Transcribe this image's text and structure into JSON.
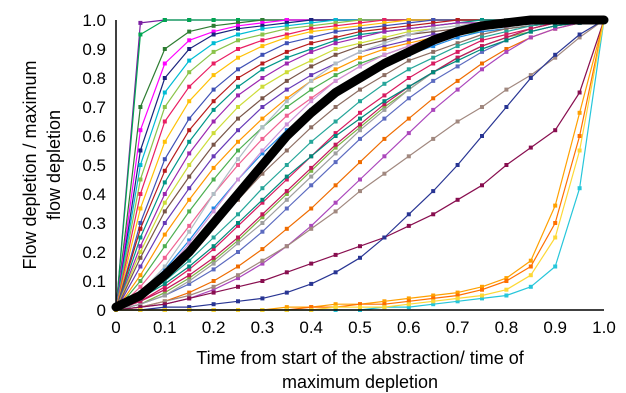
{
  "chart_data": {
    "type": "line",
    "xlabel_lines": [
      "Time from start of the abstraction/ time of",
      "maximum depletion"
    ],
    "ylabel_lines": [
      "Flow depletion / maximum",
      "flow depletion"
    ],
    "xlim": [
      0,
      1
    ],
    "ylim": [
      0,
      1
    ],
    "x_ticks": [
      "0",
      "0.1",
      "0.2",
      "0.3",
      "0.4",
      "0.5",
      "0.6",
      "0.7",
      "0.8",
      "0.9",
      "1.0"
    ],
    "y_ticks": [
      "0",
      "0.1",
      "0.2",
      "0.3",
      "0.4",
      "0.5",
      "0.6",
      "0.7",
      "0.8",
      "0.9",
      "1.0"
    ],
    "grid": false,
    "legend": "none",
    "x": [
      0,
      0.05,
      0.1,
      0.15,
      0.2,
      0.25,
      0.3,
      0.35,
      0.4,
      0.45,
      0.5,
      0.55,
      0.6,
      0.65,
      0.7,
      0.75,
      0.8,
      0.85,
      0.9,
      0.95,
      1.0
    ],
    "series": [
      {
        "color": "#000000",
        "highlight": true,
        "values": [
          0.01,
          0.05,
          0.12,
          0.2,
          0.3,
          0.4,
          0.5,
          0.6,
          0.68,
          0.75,
          0.8,
          0.85,
          0.89,
          0.93,
          0.96,
          0.98,
          0.99,
          1.0,
          1.0,
          1.0,
          1.0
        ]
      },
      {
        "color": "#7a1fa2",
        "values": [
          0.0,
          0.99,
          1.0,
          1.0,
          1.0,
          1.0,
          1.0,
          1.0,
          1.0,
          1.0,
          1.0,
          1.0,
          1.0,
          1.0,
          1.0,
          1.0,
          1.0,
          1.0,
          1.0,
          1.0,
          1.0
        ]
      },
      {
        "color": "#00a651",
        "values": [
          0.0,
          0.95,
          1.0,
          1.0,
          1.0,
          1.0,
          1.0,
          1.0,
          1.0,
          1.0,
          1.0,
          1.0,
          1.0,
          1.0,
          1.0,
          1.0,
          1.0,
          1.0,
          1.0,
          1.0,
          1.0
        ]
      },
      {
        "color": "#2e7d32",
        "values": [
          0.0,
          0.7,
          0.9,
          0.96,
          0.98,
          0.99,
          1.0,
          1.0,
          1.0,
          1.0,
          1.0,
          1.0,
          1.0,
          1.0,
          1.0,
          1.0,
          1.0,
          1.0,
          1.0,
          1.0,
          1.0
        ]
      },
      {
        "color": "#ff00ff",
        "values": [
          0.0,
          0.62,
          0.85,
          0.93,
          0.96,
          0.98,
          0.99,
          1.0,
          1.0,
          1.0,
          1.0,
          1.0,
          1.0,
          1.0,
          1.0,
          1.0,
          1.0,
          1.0,
          1.0,
          1.0,
          1.0
        ]
      },
      {
        "color": "#1a237e",
        "values": [
          0.0,
          0.55,
          0.8,
          0.9,
          0.95,
          0.97,
          0.98,
          0.99,
          1.0,
          1.0,
          1.0,
          1.0,
          1.0,
          1.0,
          1.0,
          1.0,
          1.0,
          1.0,
          1.0,
          1.0,
          1.0
        ]
      },
      {
        "color": "#00bcd4",
        "values": [
          0.0,
          0.5,
          0.75,
          0.86,
          0.92,
          0.95,
          0.97,
          0.98,
          0.99,
          1.0,
          1.0,
          1.0,
          1.0,
          1.0,
          1.0,
          1.0,
          1.0,
          1.0,
          1.0,
          1.0,
          1.0
        ]
      },
      {
        "color": "#8bc34a",
        "values": [
          0.0,
          0.45,
          0.7,
          0.82,
          0.89,
          0.93,
          0.95,
          0.97,
          0.98,
          0.99,
          1.0,
          1.0,
          1.0,
          1.0,
          1.0,
          1.0,
          1.0,
          1.0,
          1.0,
          1.0,
          1.0
        ]
      },
      {
        "color": "#e91e63",
        "values": [
          0.0,
          0.4,
          0.65,
          0.77,
          0.85,
          0.9,
          0.93,
          0.95,
          0.97,
          0.98,
          0.99,
          1.0,
          1.0,
          1.0,
          1.0,
          1.0,
          1.0,
          1.0,
          1.0,
          1.0,
          1.0
        ]
      },
      {
        "color": "#ffc107",
        "values": [
          0.0,
          0.35,
          0.58,
          0.72,
          0.81,
          0.87,
          0.91,
          0.94,
          0.96,
          0.97,
          0.98,
          0.99,
          1.0,
          1.0,
          1.0,
          1.0,
          1.0,
          1.0,
          1.0,
          1.0,
          1.0
        ]
      },
      {
        "color": "#3f51b5",
        "values": [
          0.0,
          0.3,
          0.52,
          0.66,
          0.76,
          0.83,
          0.88,
          0.92,
          0.94,
          0.96,
          0.97,
          0.98,
          0.99,
          1.0,
          1.0,
          1.0,
          1.0,
          1.0,
          1.0,
          1.0,
          1.0
        ]
      },
      {
        "color": "#b71c1c",
        "values": [
          0.0,
          0.28,
          0.48,
          0.62,
          0.72,
          0.8,
          0.85,
          0.89,
          0.92,
          0.94,
          0.96,
          0.97,
          0.98,
          0.99,
          1.0,
          1.0,
          1.0,
          1.0,
          1.0,
          1.0,
          1.0
        ]
      },
      {
        "color": "#009688",
        "values": [
          0.0,
          0.25,
          0.44,
          0.58,
          0.69,
          0.77,
          0.83,
          0.87,
          0.9,
          0.93,
          0.95,
          0.96,
          0.97,
          0.98,
          0.99,
          1.0,
          1.0,
          1.0,
          1.0,
          1.0,
          1.0
        ]
      },
      {
        "color": "#9c27b0",
        "values": [
          0.0,
          0.22,
          0.4,
          0.54,
          0.65,
          0.74,
          0.8,
          0.85,
          0.89,
          0.92,
          0.94,
          0.96,
          0.97,
          0.98,
          0.99,
          0.99,
          1.0,
          1.0,
          1.0,
          1.0,
          1.0
        ]
      },
      {
        "color": "#cddc39",
        "values": [
          0.0,
          0.2,
          0.37,
          0.5,
          0.61,
          0.7,
          0.77,
          0.82,
          0.86,
          0.9,
          0.92,
          0.94,
          0.96,
          0.97,
          0.98,
          0.99,
          1.0,
          1.0,
          1.0,
          1.0,
          1.0
        ]
      },
      {
        "color": "#795548",
        "values": [
          0.0,
          0.18,
          0.34,
          0.46,
          0.57,
          0.66,
          0.73,
          0.79,
          0.84,
          0.88,
          0.91,
          0.93,
          0.95,
          0.96,
          0.97,
          0.98,
          0.99,
          1.0,
          1.0,
          1.0,
          1.0
        ]
      },
      {
        "color": "#673ab7",
        "values": [
          0.0,
          0.15,
          0.3,
          0.42,
          0.53,
          0.62,
          0.7,
          0.76,
          0.81,
          0.85,
          0.89,
          0.91,
          0.93,
          0.95,
          0.96,
          0.97,
          0.98,
          0.99,
          1.0,
          1.0,
          1.0
        ]
      },
      {
        "color": "#ff9800",
        "values": [
          0.0,
          0.12,
          0.26,
          0.38,
          0.49,
          0.58,
          0.66,
          0.73,
          0.79,
          0.83,
          0.87,
          0.9,
          0.92,
          0.94,
          0.96,
          0.97,
          0.98,
          0.99,
          1.0,
          1.0,
          1.0
        ]
      },
      {
        "color": "#4caf50",
        "values": [
          0.0,
          0.1,
          0.22,
          0.34,
          0.45,
          0.55,
          0.63,
          0.7,
          0.76,
          0.81,
          0.85,
          0.88,
          0.91,
          0.93,
          0.95,
          0.96,
          0.97,
          0.98,
          0.99,
          1.0,
          1.0
        ]
      },
      {
        "color": "#f06292",
        "values": [
          0.0,
          0.08,
          0.18,
          0.29,
          0.4,
          0.5,
          0.59,
          0.67,
          0.73,
          0.79,
          0.84,
          0.88,
          0.91,
          0.93,
          0.95,
          0.97,
          0.98,
          0.99,
          1.0,
          1.0,
          1.0
        ]
      },
      {
        "color": "#1e88e5",
        "values": [
          0.0,
          0.06,
          0.14,
          0.24,
          0.35,
          0.45,
          0.54,
          0.62,
          0.69,
          0.75,
          0.8,
          0.85,
          0.88,
          0.91,
          0.94,
          0.96,
          0.97,
          0.98,
          0.99,
          1.0,
          1.0
        ]
      },
      {
        "color": "#8d6e63",
        "values": [
          0.0,
          0.05,
          0.12,
          0.2,
          0.29,
          0.38,
          0.47,
          0.55,
          0.63,
          0.7,
          0.76,
          0.81,
          0.86,
          0.89,
          0.92,
          0.95,
          0.97,
          0.98,
          0.99,
          1.0,
          1.0
        ]
      },
      {
        "color": "#26a69a",
        "values": [
          0.0,
          0.04,
          0.1,
          0.17,
          0.25,
          0.33,
          0.42,
          0.5,
          0.58,
          0.65,
          0.72,
          0.78,
          0.83,
          0.87,
          0.91,
          0.94,
          0.96,
          0.98,
          0.99,
          1.0,
          1.0
        ]
      },
      {
        "color": "#d81b60",
        "values": [
          0.0,
          0.03,
          0.08,
          0.14,
          0.21,
          0.29,
          0.37,
          0.45,
          0.53,
          0.61,
          0.68,
          0.74,
          0.8,
          0.85,
          0.89,
          0.93,
          0.95,
          0.97,
          0.99,
          1.0,
          1.0
        ]
      },
      {
        "color": "#7cb342",
        "values": [
          0.0,
          0.02,
          0.06,
          0.11,
          0.17,
          0.24,
          0.32,
          0.4,
          0.48,
          0.56,
          0.63,
          0.7,
          0.76,
          0.82,
          0.87,
          0.91,
          0.94,
          0.96,
          0.98,
          0.99,
          1.0
        ]
      },
      {
        "color": "#5c6bc0",
        "values": [
          0.0,
          0.02,
          0.05,
          0.09,
          0.14,
          0.2,
          0.27,
          0.35,
          0.43,
          0.51,
          0.59,
          0.66,
          0.73,
          0.79,
          0.84,
          0.89,
          0.93,
          0.96,
          0.98,
          0.99,
          1.0
        ]
      },
      {
        "color": "#ef6c00",
        "values": [
          0.0,
          0.01,
          0.03,
          0.06,
          0.1,
          0.15,
          0.21,
          0.28,
          0.35,
          0.43,
          0.51,
          0.59,
          0.66,
          0.73,
          0.79,
          0.85,
          0.9,
          0.94,
          0.97,
          0.99,
          1.0
        ]
      },
      {
        "color": "#ab47bc",
        "values": [
          0.0,
          0.01,
          0.02,
          0.04,
          0.07,
          0.11,
          0.16,
          0.22,
          0.29,
          0.37,
          0.45,
          0.53,
          0.61,
          0.69,
          0.76,
          0.83,
          0.89,
          0.94,
          0.97,
          0.99,
          1.0
        ]
      },
      {
        "color": "#9e9e9e",
        "values": [
          0.0,
          0.02,
          0.05,
          0.1,
          0.16,
          0.23,
          0.3,
          0.38,
          0.46,
          0.54,
          0.62,
          0.69,
          0.76,
          0.82,
          0.87,
          0.91,
          0.94,
          0.97,
          0.99,
          1.0,
          1.0
        ]
      },
      {
        "color": "#c2185b",
        "values": [
          0.0,
          0.03,
          0.07,
          0.12,
          0.18,
          0.25,
          0.33,
          0.41,
          0.49,
          0.57,
          0.64,
          0.71,
          0.77,
          0.82,
          0.87,
          0.91,
          0.94,
          0.97,
          0.99,
          1.0,
          1.0
        ]
      },
      {
        "color": "#00897b",
        "values": [
          0.0,
          0.04,
          0.09,
          0.15,
          0.22,
          0.3,
          0.38,
          0.46,
          0.53,
          0.6,
          0.66,
          0.72,
          0.77,
          0.82,
          0.86,
          0.9,
          0.93,
          0.96,
          0.98,
          0.99,
          1.0
        ]
      },
      {
        "color": "#b0bec5",
        "values": [
          0.0,
          0.06,
          0.15,
          0.27,
          0.4,
          0.52,
          0.63,
          0.72,
          0.79,
          0.85,
          0.89,
          0.92,
          0.95,
          0.97,
          0.98,
          0.99,
          1.0,
          1.0,
          1.0,
          1.0,
          1.0
        ]
      },
      {
        "color": "#ce93d8",
        "values": [
          0.0,
          0.05,
          0.13,
          0.23,
          0.34,
          0.45,
          0.55,
          0.64,
          0.72,
          0.79,
          0.84,
          0.88,
          0.91,
          0.94,
          0.96,
          0.97,
          0.98,
          0.99,
          1.0,
          1.0,
          1.0
        ]
      },
      {
        "color": "#a1887f",
        "values": [
          0.0,
          0.01,
          0.03,
          0.05,
          0.08,
          0.12,
          0.17,
          0.22,
          0.28,
          0.34,
          0.41,
          0.47,
          0.53,
          0.59,
          0.65,
          0.7,
          0.76,
          0.81,
          0.87,
          0.94,
          1.0
        ]
      },
      {
        "color": "#880e4f",
        "values": [
          0.0,
          0.01,
          0.02,
          0.04,
          0.06,
          0.08,
          0.1,
          0.13,
          0.16,
          0.19,
          0.22,
          0.25,
          0.29,
          0.33,
          0.38,
          0.43,
          0.5,
          0.56,
          0.62,
          0.75,
          1.0
        ]
      },
      {
        "color": "#283593",
        "values": [
          0.0,
          0.0,
          0.01,
          0.01,
          0.02,
          0.03,
          0.04,
          0.06,
          0.09,
          0.13,
          0.18,
          0.25,
          0.33,
          0.41,
          0.5,
          0.6,
          0.7,
          0.8,
          0.88,
          0.95,
          1.0
        ]
      },
      {
        "color": "#ffa000",
        "values": [
          0.0,
          0.0,
          0.0,
          0.0,
          0.0,
          0.0,
          0.0,
          0.01,
          0.01,
          0.02,
          0.02,
          0.03,
          0.04,
          0.05,
          0.06,
          0.08,
          0.11,
          0.17,
          0.36,
          0.68,
          1.0
        ]
      },
      {
        "color": "#ff6f00",
        "values": [
          0.0,
          0.0,
          0.0,
          0.0,
          0.0,
          0.0,
          0.0,
          0.0,
          0.01,
          0.01,
          0.02,
          0.02,
          0.03,
          0.04,
          0.05,
          0.07,
          0.1,
          0.15,
          0.3,
          0.6,
          1.0
        ]
      },
      {
        "color": "#26c6da",
        "values": [
          0.0,
          0.0,
          0.0,
          0.0,
          0.0,
          0.0,
          0.0,
          0.0,
          0.0,
          0.0,
          0.0,
          0.01,
          0.01,
          0.02,
          0.03,
          0.04,
          0.05,
          0.08,
          0.15,
          0.42,
          1.0
        ]
      },
      {
        "color": "#fdd835",
        "values": [
          0.0,
          0.0,
          0.0,
          0.0,
          0.0,
          0.0,
          0.0,
          0.0,
          0.0,
          0.01,
          0.01,
          0.01,
          0.02,
          0.03,
          0.04,
          0.05,
          0.07,
          0.12,
          0.25,
          0.55,
          1.0
        ]
      }
    ]
  }
}
